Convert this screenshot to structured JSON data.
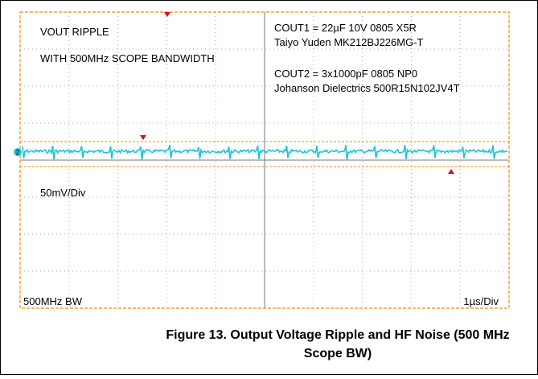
{
  "scope": {
    "notes_left": [
      "VOUT RIPPLE",
      "WITH 500MHz SCOPE BANDWIDTH"
    ],
    "notes_right": [
      "COUT1 = 22µF 10V 0805 X5R",
      "Taiyo Yuden MK212BJ226MG-T",
      "COUT2 = 3x1000pF 0805 NP0",
      "Johanson Dielectrics 500R15N102JV4T"
    ],
    "vertical_scale": "50mV/Div",
    "bandwidth": "500MHz BW",
    "time_scale": "1µs/Div",
    "channel": "2"
  },
  "caption": [
    "Figure 13. Output Voltage Ripple and HF Noise (500 MHz",
    "Scope BW)"
  ]
}
